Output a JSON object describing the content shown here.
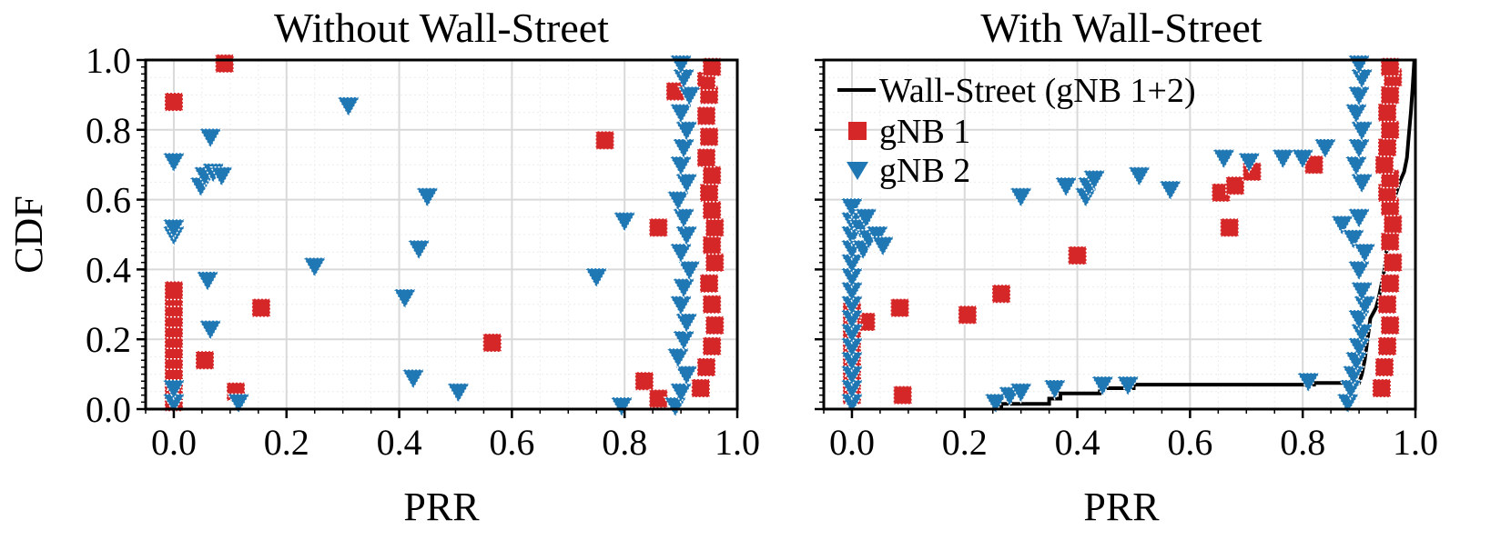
{
  "chart_data": [
    {
      "type": "scatter",
      "title": "Without Wall-Street",
      "xlabel": "PRR",
      "ylabel": "CDF",
      "xlim": [
        -0.05,
        1.0
      ],
      "ylim": [
        0.0,
        1.0
      ],
      "xticks": [
        "0.0",
        "0.2",
        "0.4",
        "0.6",
        "0.8",
        "1.0"
      ],
      "yticks": [
        "0.0",
        "0.2",
        "0.4",
        "0.6",
        "0.8",
        "1.0"
      ],
      "grid": true,
      "series": [
        {
          "name": "gNB 1",
          "marker": "square",
          "color": "#d62728",
          "points": [
            [
              0.0,
              0.02
            ],
            [
              0.0,
              0.05
            ],
            [
              0.0,
              0.08
            ],
            [
              0.0,
              0.11
            ],
            [
              0.0,
              0.14
            ],
            [
              0.0,
              0.17
            ],
            [
              0.0,
              0.2
            ],
            [
              0.0,
              0.23
            ],
            [
              0.0,
              0.26
            ],
            [
              0.0,
              0.29
            ],
            [
              0.0,
              0.32
            ],
            [
              0.0,
              0.34
            ],
            [
              0.0,
              0.88
            ],
            [
              0.09,
              0.99
            ],
            [
              0.055,
              0.14
            ],
            [
              0.11,
              0.05
            ],
            [
              0.155,
              0.29
            ],
            [
              0.565,
              0.19
            ],
            [
              0.765,
              0.77
            ],
            [
              0.835,
              0.08
            ],
            [
              0.86,
              0.03
            ],
            [
              0.86,
              0.52
            ],
            [
              0.89,
              0.91
            ],
            [
              0.935,
              0.06
            ],
            [
              0.945,
              0.12
            ],
            [
              0.955,
              0.18
            ],
            [
              0.96,
              0.24
            ],
            [
              0.955,
              0.3
            ],
            [
              0.95,
              0.36
            ],
            [
              0.96,
              0.42
            ],
            [
              0.955,
              0.47
            ],
            [
              0.96,
              0.52
            ],
            [
              0.955,
              0.57
            ],
            [
              0.95,
              0.62
            ],
            [
              0.955,
              0.67
            ],
            [
              0.945,
              0.72
            ],
            [
              0.95,
              0.78
            ],
            [
              0.945,
              0.84
            ],
            [
              0.95,
              0.9
            ],
            [
              0.945,
              0.94
            ],
            [
              0.955,
              0.98
            ]
          ]
        },
        {
          "name": "gNB 2",
          "marker": "triangle-down",
          "color": "#1f77b4",
          "points": [
            [
              0.0,
              0.02
            ],
            [
              0.0,
              0.06
            ],
            [
              0.0,
              0.5
            ],
            [
              0.0,
              0.52
            ],
            [
              0.0,
              0.71
            ],
            [
              0.048,
              0.64
            ],
            [
              0.055,
              0.67
            ],
            [
              0.065,
              0.78
            ],
            [
              0.07,
              0.68
            ],
            [
              0.085,
              0.67
            ],
            [
              0.06,
              0.37
            ],
            [
              0.065,
              0.23
            ],
            [
              0.115,
              0.02
            ],
            [
              0.25,
              0.41
            ],
            [
              0.31,
              0.87
            ],
            [
              0.41,
              0.32
            ],
            [
              0.425,
              0.09
            ],
            [
              0.435,
              0.46
            ],
            [
              0.45,
              0.61
            ],
            [
              0.505,
              0.05
            ],
            [
              0.75,
              0.38
            ],
            [
              0.8,
              0.54
            ],
            [
              0.795,
              0.01
            ],
            [
              0.89,
              0.01
            ],
            [
              0.9,
              0.05
            ],
            [
              0.91,
              0.1
            ],
            [
              0.895,
              0.15
            ],
            [
              0.905,
              0.2
            ],
            [
              0.91,
              0.25
            ],
            [
              0.9,
              0.3
            ],
            [
              0.905,
              0.35
            ],
            [
              0.915,
              0.4
            ],
            [
              0.9,
              0.45
            ],
            [
              0.91,
              0.5
            ],
            [
              0.905,
              0.55
            ],
            [
              0.895,
              0.6
            ],
            [
              0.91,
              0.65
            ],
            [
              0.9,
              0.7
            ],
            [
              0.905,
              0.75
            ],
            [
              0.91,
              0.8
            ],
            [
              0.9,
              0.85
            ],
            [
              0.915,
              0.9
            ],
            [
              0.905,
              0.95
            ],
            [
              0.9,
              0.99
            ]
          ]
        }
      ]
    },
    {
      "type": "scatter",
      "title": "With Wall-Street",
      "xlabel": "PRR",
      "ylabel": "",
      "xlim": [
        -0.05,
        1.0
      ],
      "ylim": [
        0.0,
        1.0
      ],
      "xticks": [
        "0.0",
        "0.2",
        "0.4",
        "0.6",
        "0.8",
        "1.0"
      ],
      "grid": true,
      "legend": {
        "position": "top-left",
        "entries": [
          {
            "label": "Wall-Street (gNB 1+2)",
            "marker": "line",
            "color": "#000000"
          },
          {
            "label": "gNB 1",
            "marker": "square",
            "color": "#d62728"
          },
          {
            "label": "gNB 2",
            "marker": "triangle-down",
            "color": "#1f77b4"
          }
        ]
      },
      "series": [
        {
          "name": "Wall-Street (gNB 1+2)",
          "type": "line",
          "color": "#000000",
          "points": [
            [
              0.265,
              0.0
            ],
            [
              0.265,
              0.015
            ],
            [
              0.35,
              0.015
            ],
            [
              0.35,
              0.03
            ],
            [
              0.37,
              0.03
            ],
            [
              0.37,
              0.045
            ],
            [
              0.44,
              0.045
            ],
            [
              0.44,
              0.06
            ],
            [
              0.5,
              0.06
            ],
            [
              0.5,
              0.07
            ],
            [
              0.82,
              0.07
            ],
            [
              0.82,
              0.075
            ],
            [
              0.9,
              0.075
            ],
            [
              0.905,
              0.1
            ],
            [
              0.91,
              0.14
            ],
            [
              0.915,
              0.2
            ],
            [
              0.92,
              0.26
            ],
            [
              0.93,
              0.29
            ],
            [
              0.935,
              0.32
            ],
            [
              0.94,
              0.36
            ],
            [
              0.945,
              0.4
            ],
            [
              0.95,
              0.47
            ],
            [
              0.952,
              0.5
            ],
            [
              0.955,
              0.56
            ],
            [
              0.962,
              0.6
            ],
            [
              0.972,
              0.65
            ],
            [
              0.98,
              0.68
            ],
            [
              0.985,
              0.72
            ],
            [
              0.988,
              0.78
            ],
            [
              0.992,
              0.85
            ],
            [
              0.995,
              0.92
            ],
            [
              0.998,
              1.0
            ]
          ]
        },
        {
          "name": "gNB 1",
          "marker": "square",
          "color": "#d62728",
          "points": [
            [
              0.0,
              0.04
            ],
            [
              0.0,
              0.08
            ],
            [
              0.0,
              0.12
            ],
            [
              0.0,
              0.16
            ],
            [
              0.0,
              0.2
            ],
            [
              0.0,
              0.23
            ],
            [
              0.015,
              0.25
            ],
            [
              0.025,
              0.25
            ],
            [
              0.0,
              0.28
            ],
            [
              0.09,
              0.04
            ],
            [
              0.085,
              0.29
            ],
            [
              0.205,
              0.27
            ],
            [
              0.265,
              0.33
            ],
            [
              0.4,
              0.44
            ],
            [
              0.655,
              0.62
            ],
            [
              0.67,
              0.52
            ],
            [
              0.68,
              0.64
            ],
            [
              0.71,
              0.68
            ],
            [
              0.82,
              0.7
            ],
            [
              0.94,
              0.06
            ],
            [
              0.945,
              0.12
            ],
            [
              0.95,
              0.18
            ],
            [
              0.955,
              0.24
            ],
            [
              0.95,
              0.3
            ],
            [
              0.955,
              0.36
            ],
            [
              0.96,
              0.42
            ],
            [
              0.955,
              0.48
            ],
            [
              0.96,
              0.53
            ],
            [
              0.955,
              0.58
            ],
            [
              0.95,
              0.62
            ],
            [
              0.955,
              0.66
            ],
            [
              0.945,
              0.7
            ],
            [
              0.95,
              0.75
            ],
            [
              0.955,
              0.8
            ],
            [
              0.95,
              0.85
            ],
            [
              0.955,
              0.9
            ],
            [
              0.96,
              0.95
            ],
            [
              0.955,
              0.98
            ]
          ]
        },
        {
          "name": "gNB 2",
          "marker": "triangle-down",
          "color": "#1f77b4",
          "points": [
            [
              0.0,
              0.02
            ],
            [
              0.0,
              0.06
            ],
            [
              0.0,
              0.1
            ],
            [
              0.0,
              0.14
            ],
            [
              0.0,
              0.18
            ],
            [
              0.0,
              0.22
            ],
            [
              0.0,
              0.26
            ],
            [
              0.0,
              0.3
            ],
            [
              0.0,
              0.34
            ],
            [
              0.0,
              0.38
            ],
            [
              0.0,
              0.42
            ],
            [
              0.0,
              0.46
            ],
            [
              0.0,
              0.5
            ],
            [
              0.0,
              0.54
            ],
            [
              0.0,
              0.58
            ],
            [
              0.015,
              0.52
            ],
            [
              0.02,
              0.46
            ],
            [
              0.025,
              0.55
            ],
            [
              0.03,
              0.49
            ],
            [
              0.045,
              0.5
            ],
            [
              0.055,
              0.47
            ],
            [
              0.255,
              0.02
            ],
            [
              0.28,
              0.04
            ],
            [
              0.3,
              0.05
            ],
            [
              0.3,
              0.61
            ],
            [
              0.36,
              0.06
            ],
            [
              0.38,
              0.64
            ],
            [
              0.415,
              0.61
            ],
            [
              0.42,
              0.64
            ],
            [
              0.43,
              0.66
            ],
            [
              0.445,
              0.07
            ],
            [
              0.49,
              0.07
            ],
            [
              0.51,
              0.67
            ],
            [
              0.565,
              0.63
            ],
            [
              0.66,
              0.72
            ],
            [
              0.705,
              0.71
            ],
            [
              0.765,
              0.72
            ],
            [
              0.8,
              0.72
            ],
            [
              0.81,
              0.08
            ],
            [
              0.84,
              0.75
            ],
            [
              0.87,
              0.53
            ],
            [
              0.89,
              0.49
            ],
            [
              0.88,
              0.02
            ],
            [
              0.885,
              0.06
            ],
            [
              0.89,
              0.1
            ],
            [
              0.895,
              0.14
            ],
            [
              0.9,
              0.18
            ],
            [
              0.905,
              0.22
            ],
            [
              0.9,
              0.26
            ],
            [
              0.91,
              0.3
            ],
            [
              0.905,
              0.34
            ],
            [
              0.9,
              0.4
            ],
            [
              0.91,
              0.45
            ],
            [
              0.9,
              0.55
            ],
            [
              0.905,
              0.65
            ],
            [
              0.895,
              0.7
            ],
            [
              0.9,
              0.75
            ],
            [
              0.905,
              0.8
            ],
            [
              0.895,
              0.85
            ],
            [
              0.9,
              0.9
            ],
            [
              0.905,
              0.95
            ],
            [
              0.9,
              0.99
            ]
          ]
        }
      ]
    }
  ]
}
